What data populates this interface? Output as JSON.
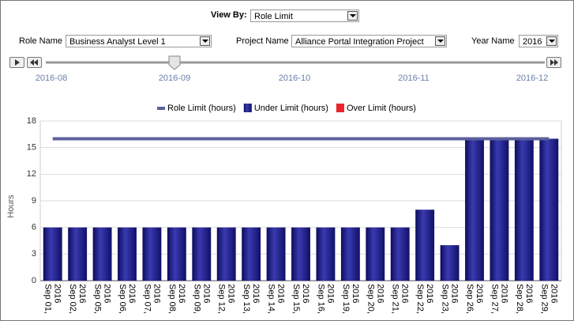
{
  "controls": {
    "view_by_label": "View By:",
    "view_by_value": "Role Limit",
    "role_name_label": "Role Name",
    "role_name_value": "Business Analyst Level 1",
    "project_name_label": "Project Name",
    "project_name_value": "Alliance Portal Integration Project",
    "year_name_label": "Year Name",
    "year_name_value": "2016",
    "timeline": [
      "2016-08",
      "2016-09",
      "2016-10",
      "2016-11",
      "2016-12"
    ]
  },
  "chart_data": {
    "type": "bar",
    "y_label": "Hours",
    "categories": [
      "Sep 01, 2016",
      "Sep 02, 2016",
      "Sep 05, 2016",
      "Sep 06, 2016",
      "Sep 07, 2016",
      "Sep 08, 2016",
      "Sep 09, 2016",
      "Sep 12, 2016",
      "Sep 13, 2016",
      "Sep 14, 2016",
      "Sep 15, 2016",
      "Sep 16, 2016",
      "Sep 19, 2016",
      "Sep 20, 2016",
      "Sep 21, 2016",
      "Sep 22, 2016",
      "Sep 23, 2016",
      "Sep 26, 2016",
      "Sep 27, 2016",
      "Sep 28, 2016",
      "Sep 29, 2016"
    ],
    "series": [
      {
        "name": "Role Limit (hours)",
        "color": "#5c5f9c",
        "kind": "line",
        "values": [
          16,
          16,
          16,
          16,
          16,
          16,
          16,
          16,
          16,
          16,
          16,
          16,
          16,
          16,
          16,
          16,
          16,
          16,
          16,
          16,
          16
        ]
      },
      {
        "name": "Under Limit (hours)",
        "color": "#1c1c86",
        "kind": "bar",
        "values": [
          6,
          6,
          6,
          6,
          6,
          6,
          6,
          6,
          6,
          6,
          6,
          6,
          6,
          6,
          6,
          8,
          4,
          16,
          16,
          16,
          16
        ]
      },
      {
        "name": "Over Limit (hours)",
        "color": "#e8262b",
        "kind": "bar",
        "values": [
          0,
          0,
          0,
          0,
          0,
          0,
          0,
          0,
          0,
          0,
          0,
          0,
          0,
          0,
          0,
          0,
          0,
          0,
          0,
          0,
          0
        ]
      }
    ],
    "ylim": [
      0,
      18
    ],
    "yticks": [
      0,
      3,
      6,
      9,
      12,
      15,
      18
    ],
    "grid": true
  }
}
